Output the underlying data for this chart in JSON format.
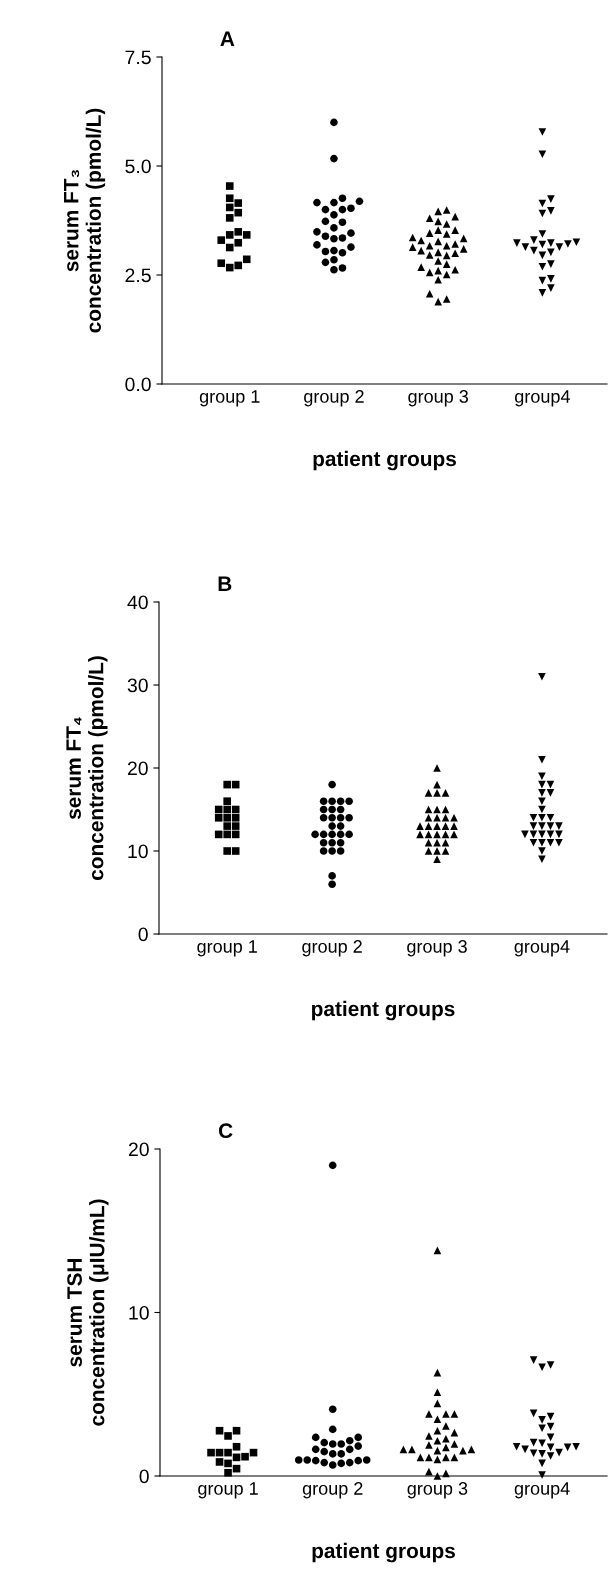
{
  "chart_data": [
    {
      "type": "scatter",
      "title": "A",
      "xlabel": "patient groups",
      "ylabel": "serum FT₃\nconcentration (pmol/L)",
      "categories": [
        "group 1",
        "group 2",
        "group 3",
        "group4"
      ],
      "ylim": [
        0,
        7.5
      ],
      "yticks": [
        {
          "value": 0,
          "label": "0.0"
        },
        {
          "value": 2.5,
          "label": "2.5"
        },
        {
          "value": 5,
          "label": "5.0"
        },
        {
          "value": 7.5,
          "label": "7.5"
        }
      ],
      "series": [
        {
          "color": "#000000",
          "marker": "square",
          "x": [
            "group 1",
            "group 1",
            "group 1",
            "group 1",
            "group 1",
            "group 1",
            "group 1",
            "group 1",
            "group 1",
            "group 1",
            "group 1",
            "group 1",
            "group 1",
            "group 1",
            "group 1",
            "group 1"
          ],
          "values": [
            4.54,
            4.15,
            4.26,
            4.05,
            3.93,
            3.81,
            3.42,
            3.49,
            3.42,
            3.24,
            3.3,
            3.13,
            2.77,
            2.67,
            2.72,
            2.86
          ]
        },
        {
          "color": "#000000",
          "marker": "circle",
          "x": [
            "group 2",
            "group 2",
            "group 2",
            "group 2",
            "group 2",
            "group 2",
            "group 2",
            "group 2",
            "group 2",
            "group 2",
            "group 2",
            "group 2",
            "group 2",
            "group 2",
            "group 2",
            "group 2",
            "group 2",
            "group 2",
            "group 2",
            "group 2",
            "group 2",
            "group 2",
            "group 2",
            "group 2",
            "group 2",
            "group 2",
            "group 2"
          ],
          "values": [
            6.0,
            5.17,
            4.26,
            4.16,
            4.03,
            4.16,
            4.19,
            4.0,
            3.88,
            4.0,
            3.73,
            3.71,
            3.58,
            3.49,
            3.39,
            3.33,
            3.35,
            3.46,
            3.14,
            3.19,
            3.04,
            3.01,
            3.06,
            2.85,
            2.79,
            2.62,
            2.66
          ]
        },
        {
          "color": "#000000",
          "marker": "triangle",
          "x": [
            "group 3",
            "group 3",
            "group 3",
            "group 3",
            "group 3",
            "group 3",
            "group 3",
            "group 3",
            "group 3",
            "group 3",
            "group 3",
            "group 3",
            "group 3",
            "group 3",
            "group 3",
            "group 3",
            "group 3",
            "group 3",
            "group 3",
            "group 3",
            "group 3",
            "group 3",
            "group 3",
            "group 3",
            "group 3",
            "group 3",
            "group 3",
            "group 3",
            "group 3",
            "group 3",
            "group 3",
            "group 3",
            "group 3",
            "group 3",
            "group 3"
          ],
          "values": [
            3.96,
            3.67,
            3.8,
            3.73,
            3.84,
            3.99,
            3.53,
            3.44,
            3.46,
            3.53,
            3.36,
            3.34,
            3.27,
            3.14,
            3.0,
            3.21,
            3.06,
            2.95,
            3.1,
            3.29,
            3.02,
            3.17,
            3.17,
            2.96,
            2.6,
            2.68,
            2.51,
            2.75,
            2.39,
            2.82,
            2.56,
            2.62,
            2.07,
            1.89,
            1.95
          ]
        },
        {
          "color": "#000000",
          "marker": "triangle_down",
          "x": [
            "group4",
            "group4",
            "group4",
            "group4",
            "group4",
            "group4",
            "group4",
            "group4",
            "group4",
            "group4",
            "group4",
            "group4",
            "group4",
            "group4",
            "group4",
            "group4",
            "group4",
            "group4",
            "group4",
            "group4",
            "group4",
            "group4",
            "group4",
            "group4"
          ],
          "values": [
            5.78,
            5.27,
            4.24,
            4.14,
            3.97,
            3.91,
            3.44,
            3.3,
            3.2,
            3.23,
            3.25,
            3.21,
            3.14,
            3.23,
            3.14,
            3.06,
            3.02,
            2.95,
            2.69,
            2.75,
            2.37,
            2.41,
            2.2,
            2.09
          ]
        }
      ]
    },
    {
      "type": "scatter",
      "title": "B",
      "xlabel": "patient groups",
      "ylabel": "serum FT₄\nconcentration (pmol/L)",
      "categories": [
        "group 1",
        "group 2",
        "group 3",
        "group4"
      ],
      "ylim": [
        0,
        40
      ],
      "yticks": [
        0,
        10,
        20,
        30,
        40
      ],
      "series": [
        {
          "color": "#000000",
          "marker": "square",
          "x": [
            "group 1",
            "group 1",
            "group 1",
            "group 1",
            "group 1",
            "group 1",
            "group 1",
            "group 1",
            "group 1",
            "group 1",
            "group 1",
            "group 1",
            "group 1",
            "group 1",
            "group 1",
            "group 1"
          ],
          "values": [
            18,
            18,
            16,
            15,
            15,
            15,
            14,
            14,
            14,
            13,
            13,
            12,
            12,
            12,
            10,
            10
          ]
        },
        {
          "color": "#000000",
          "marker": "circle",
          "x": [
            "group 2",
            "group 2",
            "group 2",
            "group 2",
            "group 2",
            "group 2",
            "group 2",
            "group 2",
            "group 2",
            "group 2",
            "group 2",
            "group 2",
            "group 2",
            "group 2",
            "group 2",
            "group 2",
            "group 2",
            "group 2",
            "group 2",
            "group 2",
            "group 2",
            "group 2",
            "group 2",
            "group 2",
            "group 2",
            "group 2",
            "group 2"
          ],
          "values": [
            18,
            16,
            16,
            16,
            16,
            15,
            15,
            15,
            14,
            14,
            14,
            14,
            13,
            13,
            12,
            12,
            12,
            12,
            12,
            11,
            11,
            11,
            10,
            10,
            10,
            7,
            6
          ]
        },
        {
          "color": "#000000",
          "marker": "triangle",
          "x": [
            "group 3",
            "group 3",
            "group 3",
            "group 3",
            "group 3",
            "group 3",
            "group 3",
            "group 3",
            "group 3",
            "group 3",
            "group 3",
            "group 3",
            "group 3",
            "group 3",
            "group 3",
            "group 3",
            "group 3",
            "group 3",
            "group 3",
            "group 3",
            "group 3",
            "group 3",
            "group 3",
            "group 3",
            "group 3",
            "group 3",
            "group 3",
            "group 3",
            "group 3"
          ],
          "values": [
            20,
            18,
            17,
            17,
            17,
            15,
            15,
            15,
            14,
            14,
            14,
            14,
            13,
            13,
            13,
            13,
            13,
            12,
            12,
            12,
            12,
            12,
            11,
            11,
            11,
            10,
            10,
            10,
            9
          ]
        },
        {
          "color": "#000000",
          "marker": "triangle_down",
          "x": [
            "group4",
            "group4",
            "group4",
            "group4",
            "group4",
            "group4",
            "group4",
            "group4",
            "group4",
            "group4",
            "group4",
            "group4",
            "group4",
            "group4",
            "group4",
            "group4",
            "group4",
            "group4",
            "group4",
            "group4",
            "group4",
            "group4",
            "group4",
            "group4",
            "group4",
            "group4",
            "group4"
          ],
          "values": [
            31,
            21,
            19,
            18,
            18,
            17,
            17,
            16,
            15,
            14,
            14,
            14,
            13,
            13,
            13,
            13,
            12,
            12,
            12,
            12,
            12,
            11,
            11,
            11,
            11,
            10,
            9
          ]
        }
      ]
    },
    {
      "type": "scatter",
      "title": "C",
      "xlabel": "patient groups",
      "ylabel": "serum TSH\nconcentration (μIU/mL)",
      "categories": [
        "group 1",
        "group 2",
        "group 3",
        "group4"
      ],
      "ylim": [
        0,
        20
      ],
      "yticks": [
        0,
        10,
        20
      ],
      "series": [
        {
          "color": "#000000",
          "marker": "square",
          "x": [
            "group 1",
            "group 1",
            "group 1",
            "group 1",
            "group 1",
            "group 1",
            "group 1",
            "group 1",
            "group 1",
            "group 1",
            "group 1",
            "group 1",
            "group 1",
            "group 1"
          ],
          "values": [
            2.77,
            2.77,
            2.45,
            1.79,
            1.43,
            1.43,
            1.43,
            1.43,
            1.14,
            1.18,
            0.77,
            0.86,
            0.45,
            0.2
          ]
        },
        {
          "color": "#000000",
          "marker": "circle",
          "x": [
            "group 2",
            "group 2",
            "group 2",
            "group 2",
            "group 2",
            "group 2",
            "group 2",
            "group 2",
            "group 2",
            "group 2",
            "group 2",
            "group 2",
            "group 2",
            "group 2",
            "group 2",
            "group 2",
            "group 2",
            "group 2",
            "group 2",
            "group 2",
            "group 2",
            "group 2",
            "group 2",
            "group 2"
          ],
          "values": [
            19.0,
            4.08,
            2.85,
            2.36,
            2.04,
            2.36,
            2.16,
            1.83,
            1.96,
            1.96,
            1.63,
            1.49,
            1.63,
            1.35,
            1.35,
            0.98,
            0.94,
            0.82,
            0.94,
            0.98,
            0.98,
            0.82,
            0.67,
            0.77
          ]
        },
        {
          "color": "#000000",
          "marker": "triangle",
          "x": [
            "group 3",
            "group 3",
            "group 3",
            "group 3",
            "group 3",
            "group 3",
            "group 3",
            "group 3",
            "group 3",
            "group 3",
            "group 3",
            "group 3",
            "group 3",
            "group 3",
            "group 3",
            "group 3",
            "group 3",
            "group 3",
            "group 3",
            "group 3",
            "group 3",
            "group 3",
            "group 3",
            "group 3",
            "group 3",
            "group 3",
            "group 3",
            "group 3",
            "group 3",
            "group 3"
          ],
          "values": [
            13.8,
            6.32,
            5.12,
            4.44,
            3.79,
            3.79,
            3.79,
            3.47,
            3.06,
            2.77,
            2.65,
            2.45,
            2.28,
            2.16,
            1.96,
            1.75,
            1.63,
            1.9,
            1.63,
            1.55,
            1.63,
            1.55,
            1.14,
            1.14,
            1.02,
            1.14,
            1.14,
            0.27,
            0.0,
            0.16
          ]
        },
        {
          "color": "#000000",
          "marker": "triangle_down",
          "x": [
            "group4",
            "group4",
            "group4",
            "group4",
            "group4",
            "group4",
            "group4",
            "group4",
            "group4",
            "group4",
            "group4",
            "group4",
            "group4",
            "group4",
            "group4",
            "group4",
            "group4",
            "group4",
            "group4",
            "group4",
            "group4",
            "group4"
          ],
          "values": [
            7.09,
            6.65,
            6.79,
            3.63,
            3.43,
            3.83,
            3.02,
            2.92,
            2.36,
            1.75,
            2.04,
            1.79,
            2.0,
            1.75,
            1.79,
            1.63,
            1.43,
            1.35,
            1.22,
            1.39,
            0.77,
            0.06
          ]
        }
      ]
    }
  ]
}
